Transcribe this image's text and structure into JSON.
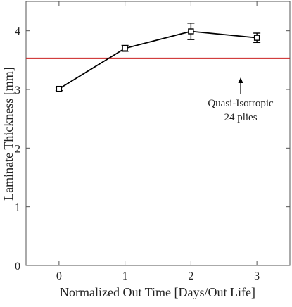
{
  "chart_data": {
    "type": "line",
    "title": "",
    "xlabel": "Normalized Out Time [Days/Out Life]",
    "ylabel": "Laminate Thickness [mm]",
    "xlim": [
      -0.5,
      3.5
    ],
    "ylim": [
      0,
      4.5
    ],
    "x_ticks": [
      "0",
      "1",
      "2",
      "3"
    ],
    "y_ticks": [
      "0",
      "1",
      "2",
      "3",
      "4"
    ],
    "grid": false,
    "series": [
      {
        "x": [
          0,
          1,
          2,
          3
        ],
        "y": [
          3.01,
          3.7,
          3.99,
          3.88
        ],
        "error": [
          0.03,
          0.05,
          0.14,
          0.08
        ],
        "marker": "square",
        "color": "#000000"
      }
    ],
    "reference_line": {
      "y": 3.53,
      "color": "#cc2222",
      "label_line1": "Quasi-Isotropic",
      "label_line2": "24 plies"
    }
  }
}
